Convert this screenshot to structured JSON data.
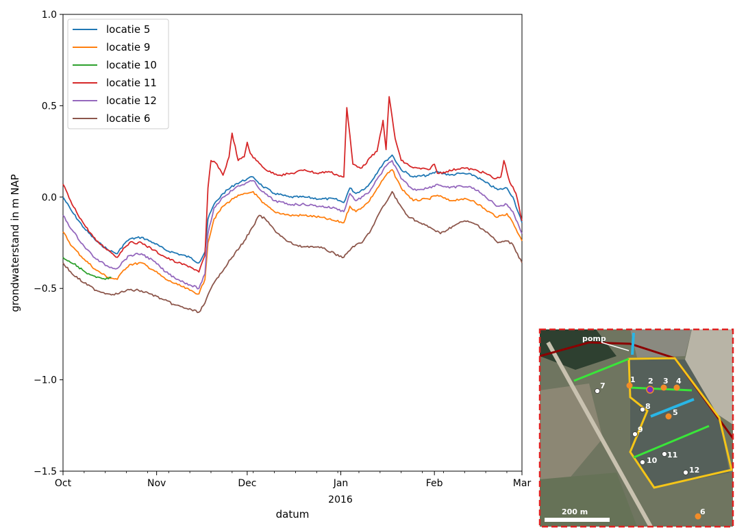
{
  "chart_data": {
    "type": "line",
    "xlabel": "datum",
    "ylabel": "grondwaterstand in m NAP",
    "xlim": [
      "2015-10-01",
      "2016-03-01"
    ],
    "ylim": [
      -1.5,
      1.0
    ],
    "yticks": [
      "1.0",
      "0.5",
      "0.0",
      "−0.5",
      "−1.0",
      "−1.5"
    ],
    "xticks": [
      {
        "date": "2015-10-01",
        "label": "Oct"
      },
      {
        "date": "2015-11-01",
        "label": "Nov"
      },
      {
        "date": "2015-12-01",
        "label": "Dec"
      },
      {
        "date": "2016-01-01",
        "label": "Jan"
      },
      {
        "date": "2016-02-01",
        "label": "Feb"
      },
      {
        "date": "2016-03-01",
        "label": "Mar"
      }
    ],
    "xtick_sublabel": "2016",
    "legend_position": "upper-left",
    "grid": false,
    "series": [
      {
        "name": "locatie 5",
        "color": "#1f77b4",
        "points": [
          [
            "2015-10-01",
            0.0
          ],
          [
            "2015-10-04",
            -0.08
          ],
          [
            "2015-10-08",
            -0.17
          ],
          [
            "2015-10-12",
            -0.24
          ],
          [
            "2015-10-16",
            -0.29
          ],
          [
            "2015-10-19",
            -0.31
          ],
          [
            "2015-10-21",
            -0.26
          ],
          [
            "2015-10-23",
            -0.23
          ],
          [
            "2015-10-27",
            -0.22
          ],
          [
            "2015-10-31",
            -0.25
          ],
          [
            "2015-11-04",
            -0.29
          ],
          [
            "2015-11-08",
            -0.31
          ],
          [
            "2015-11-12",
            -0.33
          ],
          [
            "2015-11-15",
            -0.36
          ],
          [
            "2015-11-17",
            -0.3
          ],
          [
            "2015-11-18",
            -0.12
          ],
          [
            "2015-11-20",
            -0.04
          ],
          [
            "2015-11-23",
            0.02
          ],
          [
            "2015-11-27",
            0.07
          ],
          [
            "2015-12-01",
            0.1
          ],
          [
            "2015-12-03",
            0.11
          ],
          [
            "2015-12-06",
            0.06
          ],
          [
            "2015-12-10",
            0.02
          ],
          [
            "2015-12-15",
            0.0
          ],
          [
            "2015-12-20",
            0.0
          ],
          [
            "2015-12-25",
            -0.01
          ],
          [
            "2015-12-30",
            -0.01
          ],
          [
            "2016-01-02",
            -0.03
          ],
          [
            "2016-01-04",
            0.05
          ],
          [
            "2016-01-06",
            0.02
          ],
          [
            "2016-01-10",
            0.06
          ],
          [
            "2016-01-14",
            0.16
          ],
          [
            "2016-01-16",
            0.2
          ],
          [
            "2016-01-18",
            0.23
          ],
          [
            "2016-01-21",
            0.15
          ],
          [
            "2016-01-25",
            0.11
          ],
          [
            "2016-01-30",
            0.12
          ],
          [
            "2016-02-02",
            0.14
          ],
          [
            "2016-02-06",
            0.12
          ],
          [
            "2016-02-10",
            0.13
          ],
          [
            "2016-02-14",
            0.12
          ],
          [
            "2016-02-18",
            0.08
          ],
          [
            "2016-02-22",
            0.04
          ],
          [
            "2016-02-25",
            0.05
          ],
          [
            "2016-02-27",
            0.0
          ],
          [
            "2016-03-01",
            -0.14
          ]
        ]
      },
      {
        "name": "locatie 9",
        "color": "#ff7f0e",
        "points": [
          [
            "2015-10-01",
            -0.19
          ],
          [
            "2015-10-04",
            -0.27
          ],
          [
            "2015-10-08",
            -0.34
          ],
          [
            "2015-10-12",
            -0.4
          ],
          [
            "2015-10-16",
            -0.44
          ],
          [
            "2015-10-19",
            -0.45
          ],
          [
            "2015-10-21",
            -0.4
          ],
          [
            "2015-10-23",
            -0.37
          ],
          [
            "2015-10-27",
            -0.36
          ],
          [
            "2015-10-31",
            -0.4
          ],
          [
            "2015-11-04",
            -0.45
          ],
          [
            "2015-11-08",
            -0.48
          ],
          [
            "2015-11-12",
            -0.51
          ],
          [
            "2015-11-15",
            -0.53
          ],
          [
            "2015-11-17",
            -0.45
          ],
          [
            "2015-11-18",
            -0.25
          ],
          [
            "2015-11-20",
            -0.12
          ],
          [
            "2015-11-23",
            -0.05
          ],
          [
            "2015-11-27",
            0.0
          ],
          [
            "2015-12-01",
            0.02
          ],
          [
            "2015-12-03",
            0.03
          ],
          [
            "2015-12-06",
            -0.03
          ],
          [
            "2015-12-10",
            -0.08
          ],
          [
            "2015-12-15",
            -0.1
          ],
          [
            "2015-12-20",
            -0.1
          ],
          [
            "2015-12-25",
            -0.11
          ],
          [
            "2015-12-30",
            -0.13
          ],
          [
            "2016-01-02",
            -0.14
          ],
          [
            "2016-01-04",
            -0.05
          ],
          [
            "2016-01-06",
            -0.08
          ],
          [
            "2016-01-10",
            -0.03
          ],
          [
            "2016-01-14",
            0.07
          ],
          [
            "2016-01-16",
            0.12
          ],
          [
            "2016-01-18",
            0.15
          ],
          [
            "2016-01-21",
            0.05
          ],
          [
            "2016-01-25",
            -0.02
          ],
          [
            "2016-01-30",
            -0.01
          ],
          [
            "2016-02-02",
            0.01
          ],
          [
            "2016-02-06",
            -0.02
          ],
          [
            "2016-02-10",
            -0.01
          ],
          [
            "2016-02-14",
            -0.02
          ],
          [
            "2016-02-18",
            -0.07
          ],
          [
            "2016-02-22",
            -0.11
          ],
          [
            "2016-02-25",
            -0.09
          ],
          [
            "2016-02-27",
            -0.14
          ],
          [
            "2016-03-01",
            -0.24
          ]
        ]
      },
      {
        "name": "locatie 10",
        "color": "#2ca02c",
        "points": [
          [
            "2015-10-01",
            -0.33
          ],
          [
            "2015-10-03",
            -0.35
          ],
          [
            "2015-10-06",
            -0.38
          ],
          [
            "2015-10-09",
            -0.42
          ],
          [
            "2015-10-12",
            -0.44
          ],
          [
            "2015-10-15",
            -0.45
          ],
          [
            "2015-10-17",
            -0.44
          ]
        ]
      },
      {
        "name": "locatie 11",
        "color": "#d62728",
        "points": [
          [
            "2015-10-01",
            0.07
          ],
          [
            "2015-10-04",
            -0.04
          ],
          [
            "2015-10-08",
            -0.15
          ],
          [
            "2015-10-12",
            -0.24
          ],
          [
            "2015-10-16",
            -0.29
          ],
          [
            "2015-10-19",
            -0.33
          ],
          [
            "2015-10-21",
            -0.28
          ],
          [
            "2015-10-23",
            -0.25
          ],
          [
            "2015-10-27",
            -0.25
          ],
          [
            "2015-10-31",
            -0.29
          ],
          [
            "2015-11-04",
            -0.33
          ],
          [
            "2015-11-08",
            -0.36
          ],
          [
            "2015-11-12",
            -0.38
          ],
          [
            "2015-11-15",
            -0.41
          ],
          [
            "2015-11-17",
            -0.32
          ],
          [
            "2015-11-18",
            0.05
          ],
          [
            "2015-11-19",
            0.2
          ],
          [
            "2015-11-21",
            0.18
          ],
          [
            "2015-11-23",
            0.12
          ],
          [
            "2015-11-25",
            0.22
          ],
          [
            "2015-11-26",
            0.35
          ],
          [
            "2015-11-28",
            0.2
          ],
          [
            "2015-11-30",
            0.22
          ],
          [
            "2015-12-01",
            0.3
          ],
          [
            "2015-12-02",
            0.24
          ],
          [
            "2015-12-04",
            0.2
          ],
          [
            "2015-12-08",
            0.14
          ],
          [
            "2015-12-12",
            0.12
          ],
          [
            "2015-12-16",
            0.13
          ],
          [
            "2015-12-20",
            0.15
          ],
          [
            "2015-12-24",
            0.13
          ],
          [
            "2015-12-28",
            0.14
          ],
          [
            "2015-12-31",
            0.12
          ],
          [
            "2016-01-02",
            0.11
          ],
          [
            "2016-01-03",
            0.49
          ],
          [
            "2016-01-05",
            0.18
          ],
          [
            "2016-01-08",
            0.16
          ],
          [
            "2016-01-11",
            0.22
          ],
          [
            "2016-01-13",
            0.25
          ],
          [
            "2016-01-15",
            0.42
          ],
          [
            "2016-01-16",
            0.26
          ],
          [
            "2016-01-17",
            0.55
          ],
          [
            "2016-01-19",
            0.32
          ],
          [
            "2016-01-21",
            0.2
          ],
          [
            "2016-01-25",
            0.16
          ],
          [
            "2016-01-30",
            0.15
          ],
          [
            "2016-02-01",
            0.18
          ],
          [
            "2016-02-02",
            0.13
          ],
          [
            "2016-02-05",
            0.14
          ],
          [
            "2016-02-10",
            0.16
          ],
          [
            "2016-02-14",
            0.15
          ],
          [
            "2016-02-18",
            0.13
          ],
          [
            "2016-02-21",
            0.1
          ],
          [
            "2016-02-23",
            0.11
          ],
          [
            "2016-02-24",
            0.2
          ],
          [
            "2016-02-26",
            0.08
          ],
          [
            "2016-02-28",
            0.02
          ],
          [
            "2016-03-01",
            -0.13
          ]
        ]
      },
      {
        "name": "locatie 12",
        "color": "#9467bd",
        "points": [
          [
            "2015-10-01",
            -0.1
          ],
          [
            "2015-10-04",
            -0.18
          ],
          [
            "2015-10-08",
            -0.27
          ],
          [
            "2015-10-12",
            -0.34
          ],
          [
            "2015-10-16",
            -0.38
          ],
          [
            "2015-10-19",
            -0.39
          ],
          [
            "2015-10-21",
            -0.35
          ],
          [
            "2015-10-23",
            -0.32
          ],
          [
            "2015-10-27",
            -0.31
          ],
          [
            "2015-10-31",
            -0.35
          ],
          [
            "2015-11-04",
            -0.41
          ],
          [
            "2015-11-08",
            -0.45
          ],
          [
            "2015-11-12",
            -0.48
          ],
          [
            "2015-11-15",
            -0.5
          ],
          [
            "2015-11-17",
            -0.42
          ],
          [
            "2015-11-18",
            -0.2
          ],
          [
            "2015-11-20",
            -0.06
          ],
          [
            "2015-11-23",
            0.0
          ],
          [
            "2015-11-27",
            0.05
          ],
          [
            "2015-12-01",
            0.08
          ],
          [
            "2015-12-03",
            0.09
          ],
          [
            "2015-12-06",
            0.03
          ],
          [
            "2015-12-10",
            -0.02
          ],
          [
            "2015-12-15",
            -0.04
          ],
          [
            "2015-12-20",
            -0.04
          ],
          [
            "2015-12-25",
            -0.05
          ],
          [
            "2015-12-30",
            -0.06
          ],
          [
            "2016-01-02",
            -0.08
          ],
          [
            "2016-01-04",
            0.02
          ],
          [
            "2016-01-06",
            -0.02
          ],
          [
            "2016-01-10",
            0.02
          ],
          [
            "2016-01-14",
            0.12
          ],
          [
            "2016-01-16",
            0.17
          ],
          [
            "2016-01-18",
            0.2
          ],
          [
            "2016-01-21",
            0.1
          ],
          [
            "2016-01-25",
            0.04
          ],
          [
            "2016-01-30",
            0.05
          ],
          [
            "2016-02-02",
            0.07
          ],
          [
            "2016-02-06",
            0.05
          ],
          [
            "2016-02-10",
            0.06
          ],
          [
            "2016-02-14",
            0.05
          ],
          [
            "2016-02-18",
            0.0
          ],
          [
            "2016-02-22",
            -0.05
          ],
          [
            "2016-02-25",
            -0.04
          ],
          [
            "2016-02-27",
            -0.08
          ],
          [
            "2016-03-01",
            -0.2
          ]
        ]
      },
      {
        "name": "locatie 6",
        "color": "#8c564b",
        "points": [
          [
            "2015-10-01",
            -0.36
          ],
          [
            "2015-10-04",
            -0.42
          ],
          [
            "2015-10-08",
            -0.47
          ],
          [
            "2015-10-12",
            -0.51
          ],
          [
            "2015-10-16",
            -0.53
          ],
          [
            "2015-10-19",
            -0.53
          ],
          [
            "2015-10-22",
            -0.51
          ],
          [
            "2015-10-26",
            -0.51
          ],
          [
            "2015-10-30",
            -0.53
          ],
          [
            "2015-11-03",
            -0.56
          ],
          [
            "2015-11-07",
            -0.59
          ],
          [
            "2015-11-11",
            -0.61
          ],
          [
            "2015-11-15",
            -0.63
          ],
          [
            "2015-11-17",
            -0.58
          ],
          [
            "2015-11-19",
            -0.5
          ],
          [
            "2015-11-22",
            -0.42
          ],
          [
            "2015-11-26",
            -0.33
          ],
          [
            "2015-11-30",
            -0.24
          ],
          [
            "2015-12-03",
            -0.16
          ],
          [
            "2015-12-05",
            -0.1
          ],
          [
            "2015-12-07",
            -0.12
          ],
          [
            "2015-12-10",
            -0.18
          ],
          [
            "2015-12-14",
            -0.24
          ],
          [
            "2015-12-18",
            -0.27
          ],
          [
            "2015-12-22",
            -0.27
          ],
          [
            "2015-12-26",
            -0.28
          ],
          [
            "2015-12-30",
            -0.31
          ],
          [
            "2016-01-02",
            -0.33
          ],
          [
            "2016-01-05",
            -0.27
          ],
          [
            "2016-01-08",
            -0.25
          ],
          [
            "2016-01-11",
            -0.18
          ],
          [
            "2016-01-14",
            -0.08
          ],
          [
            "2016-01-16",
            -0.03
          ],
          [
            "2016-01-18",
            0.03
          ],
          [
            "2016-01-20",
            -0.03
          ],
          [
            "2016-01-23",
            -0.1
          ],
          [
            "2016-01-27",
            -0.14
          ],
          [
            "2016-01-31",
            -0.17
          ],
          [
            "2016-02-03",
            -0.2
          ],
          [
            "2016-02-07",
            -0.16
          ],
          [
            "2016-02-11",
            -0.13
          ],
          [
            "2016-02-15",
            -0.15
          ],
          [
            "2016-02-19",
            -0.2
          ],
          [
            "2016-02-22",
            -0.25
          ],
          [
            "2016-02-25",
            -0.24
          ],
          [
            "2016-02-27",
            -0.26
          ],
          [
            "2016-03-01",
            -0.36
          ]
        ]
      }
    ]
  },
  "map": {
    "pump_label": "pomp",
    "scale_label": "200 m",
    "points": [
      {
        "label": "1",
        "kind": "orange"
      },
      {
        "label": "2",
        "kind": "purple"
      },
      {
        "label": "3",
        "kind": "orange"
      },
      {
        "label": "4",
        "kind": "orange"
      },
      {
        "label": "5",
        "kind": "orange"
      },
      {
        "label": "6",
        "kind": "orange"
      },
      {
        "label": "7",
        "kind": "white"
      },
      {
        "label": "8",
        "kind": "white"
      },
      {
        "label": "9",
        "kind": "white"
      },
      {
        "label": "10",
        "kind": "white"
      },
      {
        "label": "11",
        "kind": "white"
      },
      {
        "label": "12",
        "kind": "white"
      }
    ]
  }
}
